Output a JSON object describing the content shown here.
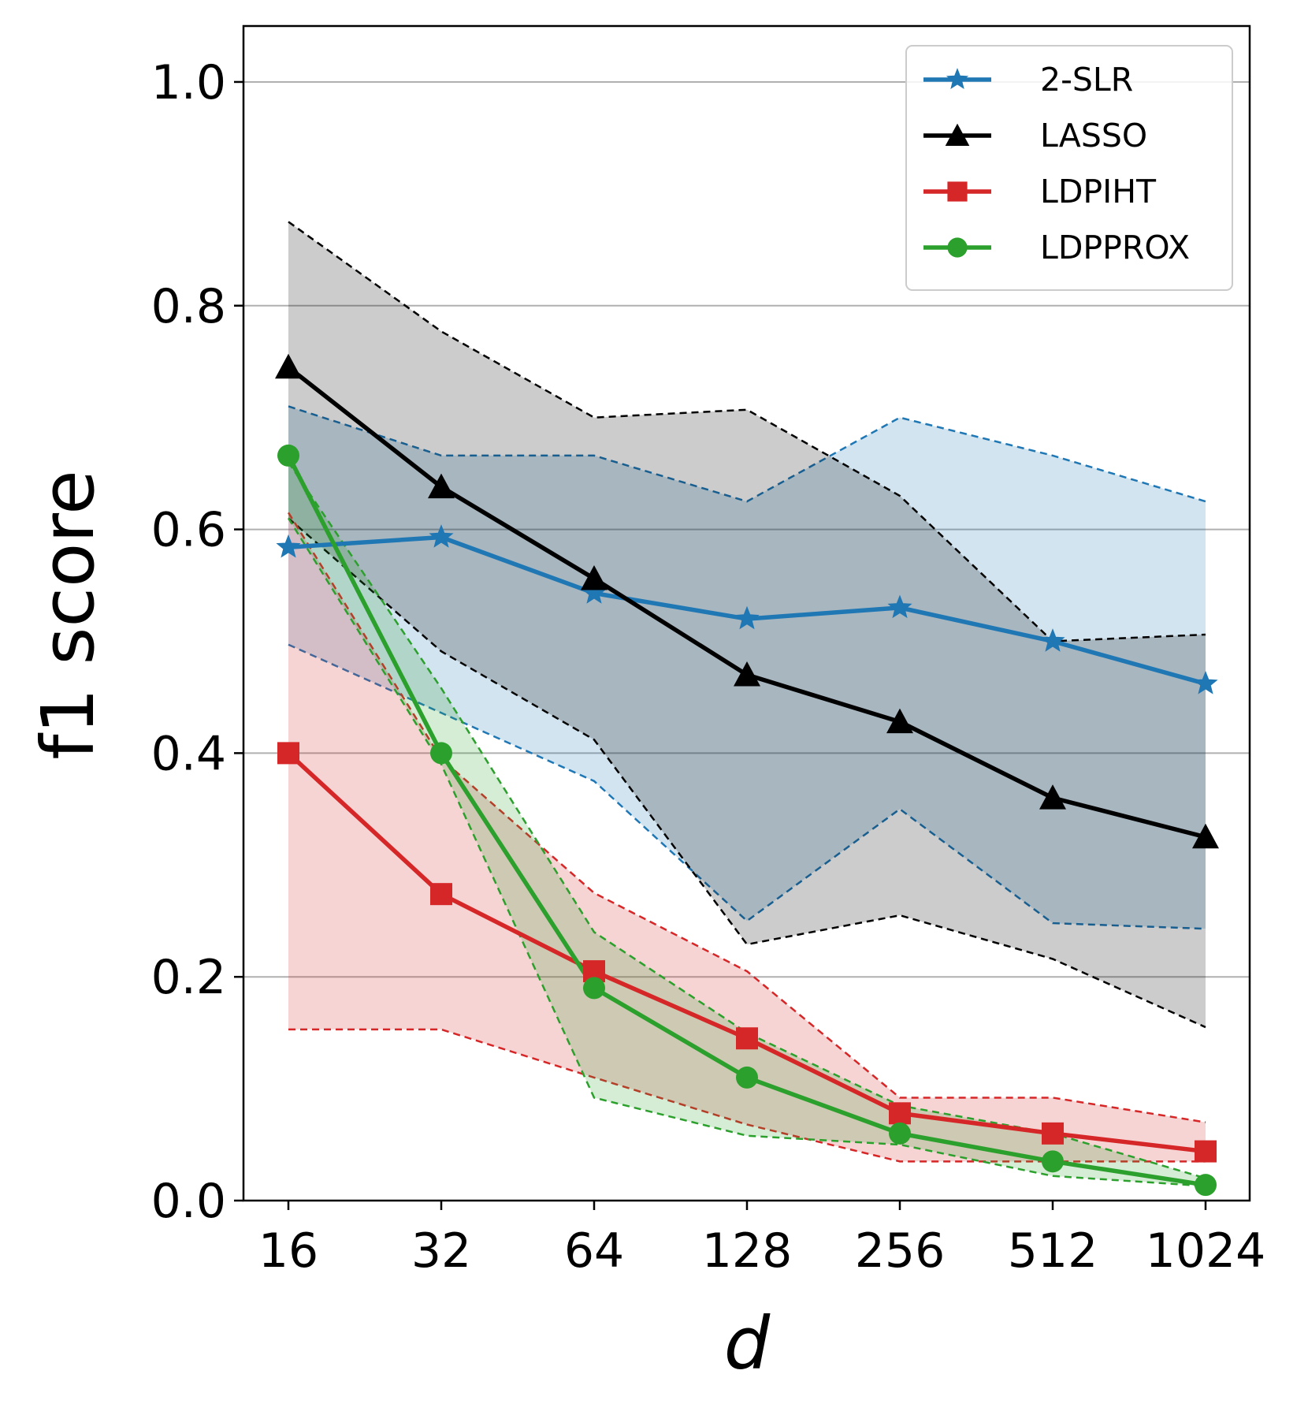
{
  "chart_data": {
    "type": "line",
    "x_categories": [
      "16",
      "32",
      "64",
      "128",
      "256",
      "512",
      "1024"
    ],
    "xlabel": "d",
    "ylabel": "f1 score",
    "ylim": [
      0.0,
      1.05
    ],
    "yticks": [
      0.0,
      0.2,
      0.4,
      0.6,
      0.8,
      1.0
    ],
    "ytick_labels": [
      "0.0",
      "0.2",
      "0.4",
      "0.6",
      "0.8",
      "1.0"
    ],
    "grid": "horizontal",
    "legend_position": "top-right",
    "series": [
      {
        "name": "2-SLR",
        "color": "#1f77b4",
        "marker": "star",
        "values": [
          0.584,
          0.593,
          0.543,
          0.52,
          0.53,
          0.5,
          0.462
        ],
        "upper": [
          0.71,
          0.666,
          0.666,
          0.625,
          0.7,
          0.666,
          0.625
        ],
        "lower": [
          0.497,
          0.436,
          0.375,
          0.25,
          0.35,
          0.248,
          0.243
        ]
      },
      {
        "name": "LASSO",
        "color": "#000000",
        "marker": "triangle",
        "values": [
          0.745,
          0.638,
          0.556,
          0.47,
          0.428,
          0.36,
          0.325
        ],
        "upper": [
          0.875,
          0.777,
          0.7,
          0.707,
          0.63,
          0.5,
          0.506
        ],
        "lower": [
          0.61,
          0.491,
          0.412,
          0.229,
          0.255,
          0.216,
          0.155
        ]
      },
      {
        "name": "LDPIHT",
        "color": "#d62728",
        "marker": "square",
        "values": [
          0.4,
          0.274,
          0.205,
          0.145,
          0.078,
          0.06,
          0.044
        ],
        "upper": [
          0.615,
          0.395,
          0.275,
          0.205,
          0.092,
          0.092,
          0.07
        ],
        "lower": [
          0.153,
          0.153,
          0.11,
          0.068,
          0.035,
          0.035,
          0.035
        ]
      },
      {
        "name": "LDPPROX",
        "color": "#2ca02c",
        "marker": "circle",
        "values": [
          0.666,
          0.4,
          0.19,
          0.11,
          0.06,
          0.035,
          0.014
        ],
        "upper": [
          0.66,
          0.458,
          0.24,
          0.15,
          0.085,
          0.06,
          0.02
        ],
        "lower": [
          0.61,
          0.39,
          0.092,
          0.058,
          0.05,
          0.022,
          0.013
        ]
      }
    ]
  }
}
